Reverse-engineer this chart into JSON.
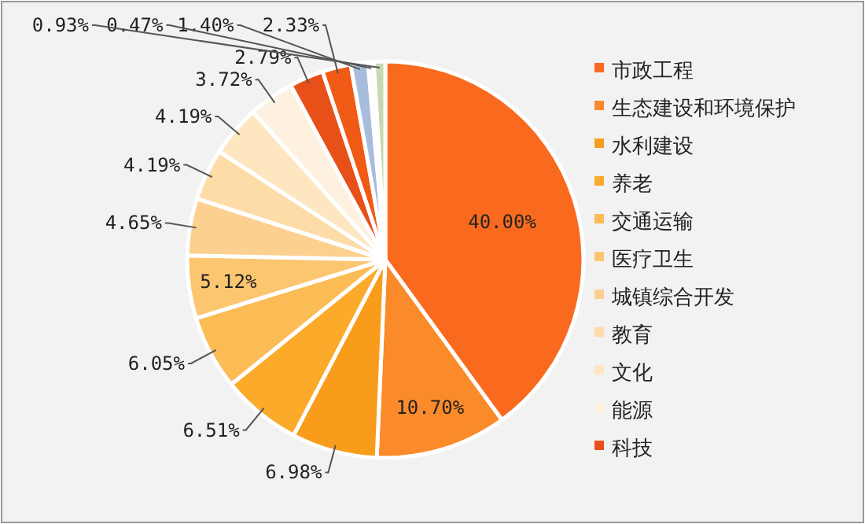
{
  "chart_data": {
    "type": "pie",
    "categories": [
      "市政工程",
      "生态建设和环境保护",
      "水利建设",
      "养老",
      "交通运输",
      "医疗卫生",
      "城镇综合开发",
      "教育",
      "文化",
      "能源",
      "科技",
      null,
      null,
      null,
      null
    ],
    "values": [
      40.0,
      10.7,
      6.98,
      6.51,
      6.05,
      5.12,
      4.65,
      4.19,
      4.19,
      3.72,
      2.79,
      2.33,
      1.4,
      0.47,
      0.93
    ],
    "value_labels": [
      "40.00%",
      "10.70%",
      "6.98%",
      "6.51%",
      "6.05%",
      "5.12%",
      "4.65%",
      "4.19%",
      "4.19%",
      "3.72%",
      "2.79%",
      "2.33%",
      "1.40%",
      "0.47%",
      "0.93%"
    ],
    "colors": [
      "#fa6a1e",
      "#fb8a2a",
      "#f99c1c",
      "#fbaa2a",
      "#fbbb55",
      "#fcc670",
      "#fcd190",
      "#fddca8",
      "#fde6c0",
      "#fef1e0",
      "#e8501a",
      "#f05a14",
      "#a8bcdc",
      "#fafafa",
      "#c8d8b0"
    ],
    "legend": "right"
  }
}
